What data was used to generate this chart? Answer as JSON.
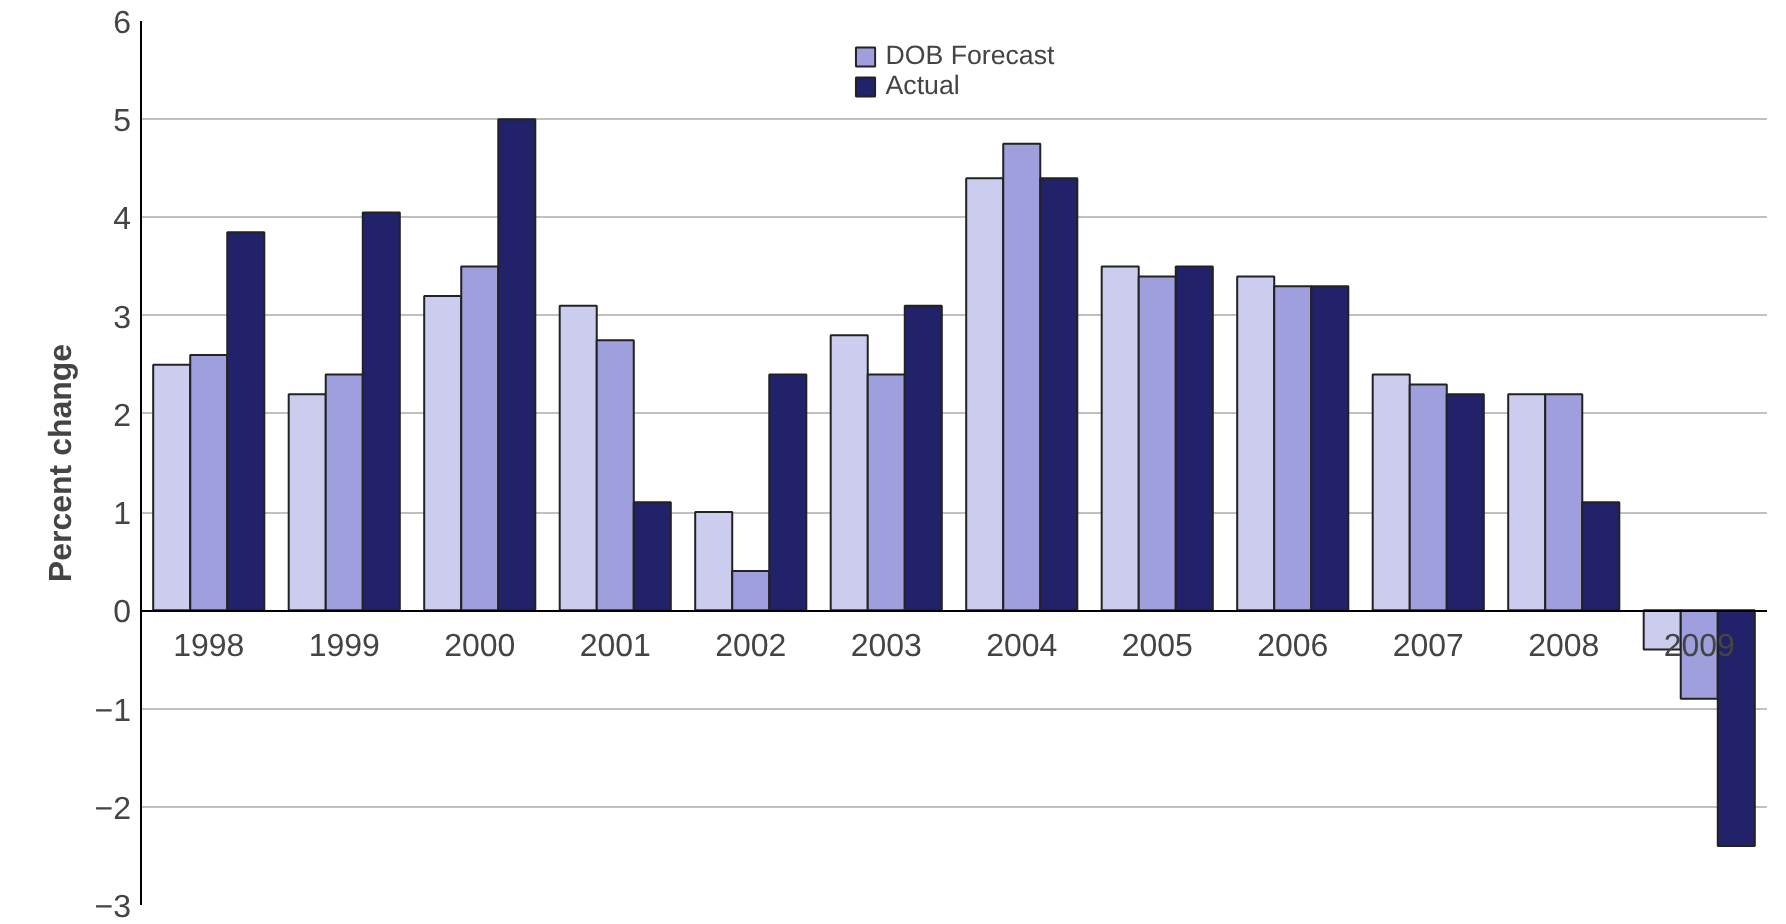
{
  "chart_data": {
    "type": "bar",
    "ylabel": "Percent change",
    "categories": [
      "1998",
      "1999",
      "2000",
      "2001",
      "2002",
      "2003",
      "2004",
      "2005",
      "2006",
      "2007",
      "2008",
      "2009"
    ],
    "series": [
      {
        "color": "#ccccee",
        "values": [
          2.5,
          2.2,
          3.2,
          3.1,
          1.0,
          2.8,
          4.4,
          3.5,
          3.4,
          2.4,
          2.2,
          -0.4
        ]
      },
      {
        "name": "DOB Forecast",
        "color": "#9f9fde",
        "values": [
          2.6,
          2.4,
          3.5,
          2.75,
          0.4,
          2.4,
          4.75,
          3.4,
          3.3,
          2.3,
          2.2,
          -0.9
        ]
      },
      {
        "name": "Actual",
        "color": "#22226a",
        "values": [
          3.85,
          4.05,
          5.0,
          1.1,
          2.4,
          3.1,
          4.4,
          3.5,
          3.3,
          2.2,
          1.1,
          -2.4
        ]
      }
    ],
    "ylim": [
      -3,
      6
    ],
    "yticks": [
      -3,
      -2,
      -1,
      0,
      1,
      2,
      3,
      4,
      5,
      6
    ],
    "grid": "y",
    "legend": "top center"
  }
}
